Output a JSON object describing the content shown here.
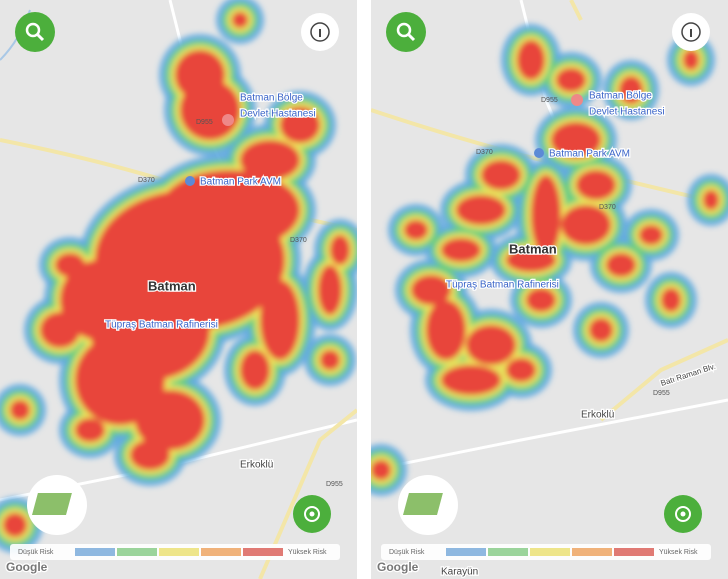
{
  "panels": [
    {
      "labels": [
        "Batman Bölge",
        "Devlet Hastanesi",
        "D955",
        "D370",
        "Batman Park AVM",
        "D370",
        "Batman",
        "Tüpraş Batman Rafinerisi",
        "Erkoklü",
        "D955"
      ],
      "legend": {
        "low": "Düşük Risk",
        "high": "Yüksek Risk"
      },
      "attribution": "Google"
    },
    {
      "labels": [
        "Batman Bölge",
        "Devlet Hastanesi",
        "D955",
        "D370",
        "Batman Park AVM",
        "D370",
        "Batman",
        "Tüpraş Batman Rafinerisi",
        "Batı Raman Blv.",
        "D955",
        "Erkoklü",
        "Karayün"
      ],
      "legend": {
        "low": "Düşük Risk",
        "high": "Yüksek Risk"
      },
      "attribution": "Google"
    }
  ]
}
